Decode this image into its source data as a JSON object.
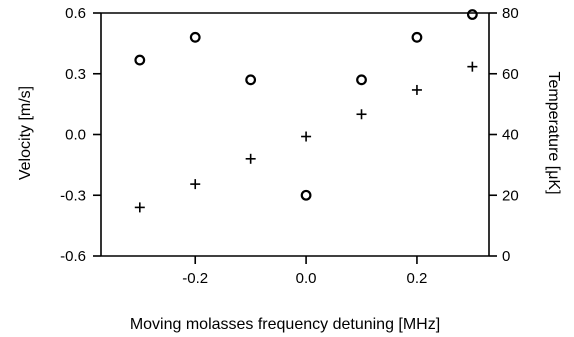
{
  "chart_data": {
    "type": "scatter",
    "xlabel": "Moving molasses frequency detuning [MHz]",
    "ylabel_left": "Velocity [m/s]",
    "ylabel_right": "Temperature [μK]",
    "xlim": [
      -0.37,
      0.33
    ],
    "ylim_left": [
      -0.6,
      0.6
    ],
    "ylim_right": [
      0,
      80
    ],
    "x_ticks": [
      "-0.2",
      "0.0",
      "0.2"
    ],
    "x_tick_values": [
      -0.2,
      0.0,
      0.2
    ],
    "y_left_ticks": [
      "0.6",
      "0.3",
      "0.0",
      "-0.3",
      "-0.6"
    ],
    "y_left_tick_values": [
      0.6,
      0.3,
      0.0,
      -0.3,
      -0.6
    ],
    "y_right_ticks": [
      "80",
      "60",
      "40",
      "20",
      "0"
    ],
    "y_right_tick_values": [
      80,
      60,
      40,
      20,
      0
    ],
    "series": [
      {
        "marker": "plus",
        "axis": "left",
        "x": [
          -0.3,
          -0.2,
          -0.1,
          0.0,
          0.1,
          0.2,
          0.3
        ],
        "y": [
          -0.36,
          -0.245,
          -0.12,
          -0.01,
          0.1,
          0.22,
          0.335
        ]
      },
      {
        "marker": "circle",
        "axis": "right",
        "x": [
          -0.3,
          -0.2,
          -0.1,
          0.0,
          0.1,
          0.2,
          0.3
        ],
        "y": [
          64.5,
          72,
          58,
          20,
          58,
          72,
          79.5
        ]
      }
    ]
  }
}
